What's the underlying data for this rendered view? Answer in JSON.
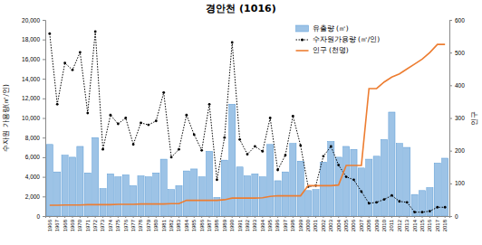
{
  "chart_data": {
    "type": "bar",
    "title": "경안천 (1016)",
    "y_label": "수자원 가용량(㎥/인)",
    "y2_label": "인구",
    "categories": [
      "1966",
      "1967",
      "1968",
      "1969",
      "1970",
      "1971",
      "1972",
      "1973",
      "1974",
      "1975",
      "1976",
      "1977",
      "1978",
      "1979",
      "1980",
      "1981",
      "1982",
      "1983",
      "1984",
      "1985",
      "1986",
      "1987",
      "1988",
      "1989",
      "1990",
      "1991",
      "1992",
      "1993",
      "1994",
      "1995",
      "1996",
      "1997",
      "1998",
      "1999",
      "2000",
      "2001",
      "2002",
      "2003",
      "2004",
      "2005",
      "2006",
      "2007",
      "2008",
      "2009",
      "2010",
      "2011",
      "2012",
      "2013",
      "2014",
      "2015",
      "2016",
      "2017",
      "2018"
    ],
    "series": [
      {
        "name": "유출량 (㎥)",
        "type": "bar",
        "color": "#9dc3e6",
        "values": [
          7300,
          4500,
          6200,
          6000,
          7100,
          4400,
          8000,
          2800,
          4300,
          4000,
          4200,
          3100,
          4100,
          4000,
          4400,
          5800,
          2700,
          3100,
          4600,
          4800,
          4000,
          6600,
          1900,
          5700,
          11400,
          5000,
          4100,
          4300,
          4000,
          7300,
          3600,
          4500,
          7400,
          5600,
          2600,
          2700,
          5500,
          7600,
          6000,
          7100,
          6800,
          4900,
          5800,
          6100,
          7800,
          10600,
          7400,
          7000,
          2200,
          2600,
          2900,
          5400,
          5900
        ]
      },
      {
        "name": "수자원가용량 (㎥/인)",
        "type": "line",
        "color": "#000000",
        "marker": "circle",
        "line_style": "dotted",
        "values": [
          18600,
          11400,
          15600,
          14900,
          16700,
          10500,
          18800,
          6800,
          10300,
          9400,
          10000,
          7300,
          9500,
          9300,
          9700,
          12600,
          6000,
          6800,
          10300,
          8300,
          6700,
          11400,
          3700,
          8000,
          17700,
          7800,
          6300,
          7100,
          6600,
          10000,
          4700,
          6200,
          10200,
          7200,
          3000,
          3100,
          6100,
          7100,
          5200,
          4000,
          3700,
          2500,
          1300,
          1400,
          1700,
          2100,
          1500,
          1400,
          400,
          400,
          500,
          900,
          900
        ]
      },
      {
        "name": "인구 (천명)",
        "type": "line",
        "color": "#ed7d31",
        "axis": "y2",
        "line_style": "solid",
        "values": [
          33,
          33,
          34,
          34,
          34,
          35,
          35,
          35,
          35,
          36,
          36,
          36,
          37,
          37,
          37,
          37,
          38,
          38,
          48,
          48,
          48,
          48,
          48,
          50,
          55,
          55,
          55,
          55,
          56,
          60,
          62,
          62,
          62,
          62,
          93,
          93,
          93,
          93,
          95,
          155,
          155,
          155,
          390,
          390,
          410,
          425,
          435,
          450,
          465,
          480,
          500,
          525,
          525
        ]
      }
    ],
    "ylim": [
      0,
      20000
    ],
    "yticks": [
      0,
      {
        "value": 2000,
        "label": "2,000"
      },
      {
        "value": 4000,
        "label": "4,000"
      },
      {
        "value": 6000,
        "label": "6,000"
      },
      {
        "value": 8000,
        "label": "8,000"
      },
      {
        "value": 10000,
        "label": "10,000"
      },
      {
        "value": 12000,
        "label": "12,000"
      },
      {
        "value": 14000,
        "label": "14,000"
      },
      {
        "value": 16000,
        "label": "16,000"
      },
      {
        "value": 18000,
        "label": "18,000"
      },
      {
        "value": 20000,
        "label": "20,000"
      }
    ],
    "y2lim": [
      0,
      600
    ],
    "y2ticks": [
      0,
      100,
      200,
      300,
      400,
      500,
      600
    ],
    "grid": false,
    "legend": "upper right"
  }
}
